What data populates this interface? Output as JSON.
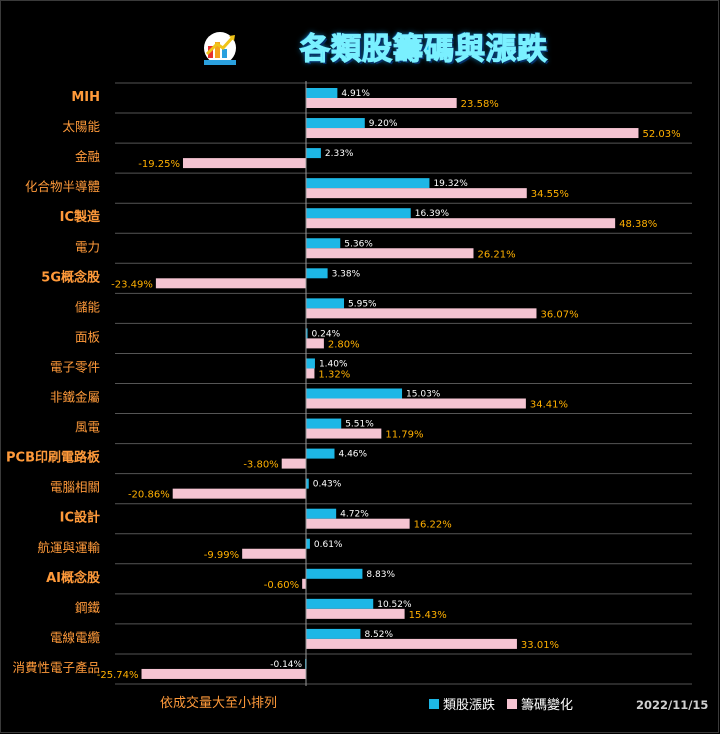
{
  "title": "各類股籌碼與漲跌",
  "date": "2022/11/15",
  "note": "依成交量大至小排列",
  "colors": {
    "stock_change": "#1db7e6",
    "chip_change": "#f5c4d2",
    "category_text": "#ff9a3a",
    "chip_label": "#ffb000",
    "grid": "#555555",
    "axis": "#9a9a9a"
  },
  "logo": {
    "icon": "stock-trend-logo-icon"
  },
  "chart_data": {
    "type": "bar",
    "orientation": "horizontal",
    "categories": [
      "MIH",
      "太陽能",
      "金融",
      "化合物半導體",
      "IC製造",
      "電力",
      "5G概念股",
      "儲能",
      "面板",
      "電子零件",
      "非鐵金屬",
      "風電",
      "PCB印刷電路板",
      "電腦相關",
      "IC設計",
      "航運與運輸",
      "AI概念股",
      "鋼鐵",
      "電線電纜",
      "消費性電子產品"
    ],
    "series": [
      {
        "name": "類股漲跌",
        "values": [
          4.91,
          9.2,
          2.33,
          19.32,
          16.39,
          5.36,
          3.38,
          5.95,
          0.24,
          1.4,
          15.03,
          5.51,
          4.46,
          0.43,
          4.72,
          0.61,
          8.83,
          10.52,
          8.52,
          -0.14
        ]
      },
      {
        "name": "籌碼變化",
        "values": [
          23.58,
          52.03,
          -19.25,
          34.55,
          48.38,
          26.21,
          -23.49,
          36.07,
          2.8,
          1.32,
          34.41,
          11.79,
          -3.8,
          -20.86,
          16.22,
          -9.99,
          -0.6,
          15.43,
          33.01,
          -25.74
        ]
      }
    ],
    "value_format": "percent_2dp",
    "grid": true,
    "legend": "bottom-right"
  }
}
